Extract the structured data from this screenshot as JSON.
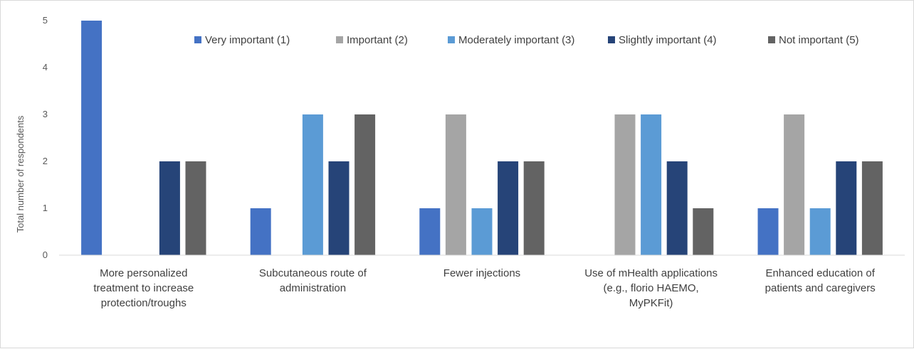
{
  "chart_data": {
    "type": "bar",
    "title": "",
    "xlabel": "",
    "ylabel": "Total number of respondents",
    "ylim": [
      0,
      5
    ],
    "yticks": [
      "0",
      "1",
      "2",
      "3",
      "4",
      "5"
    ],
    "grid": false,
    "legend_position": "top",
    "categories": [
      [
        "More personalized",
        "treatment to increase",
        "protection/troughs"
      ],
      [
        "Subcutaneous route of",
        "administration"
      ],
      [
        "Fewer injections"
      ],
      [
        "Use of mHealth applications",
        "(e.g., florio HAEMO,",
        "MyPKFit)"
      ],
      [
        "Enhanced education of",
        "patients and caregivers"
      ]
    ],
    "series": [
      {
        "name": "Very important (1)",
        "color": "#4472c4",
        "values": [
          5,
          1,
          1,
          0,
          1
        ]
      },
      {
        "name": "Important (2)",
        "color": "#a5a5a5",
        "values": [
          0,
          0,
          3,
          3,
          3
        ]
      },
      {
        "name": "Moderately important (3)",
        "color": "#5b9bd5",
        "values": [
          0,
          3,
          1,
          3,
          1
        ]
      },
      {
        "name": "Slightly important (4)",
        "color": "#264478",
        "values": [
          2,
          2,
          2,
          2,
          2
        ]
      },
      {
        "name": "Not important (5)",
        "color": "#636363",
        "values": [
          2,
          3,
          2,
          1,
          2
        ]
      }
    ]
  }
}
